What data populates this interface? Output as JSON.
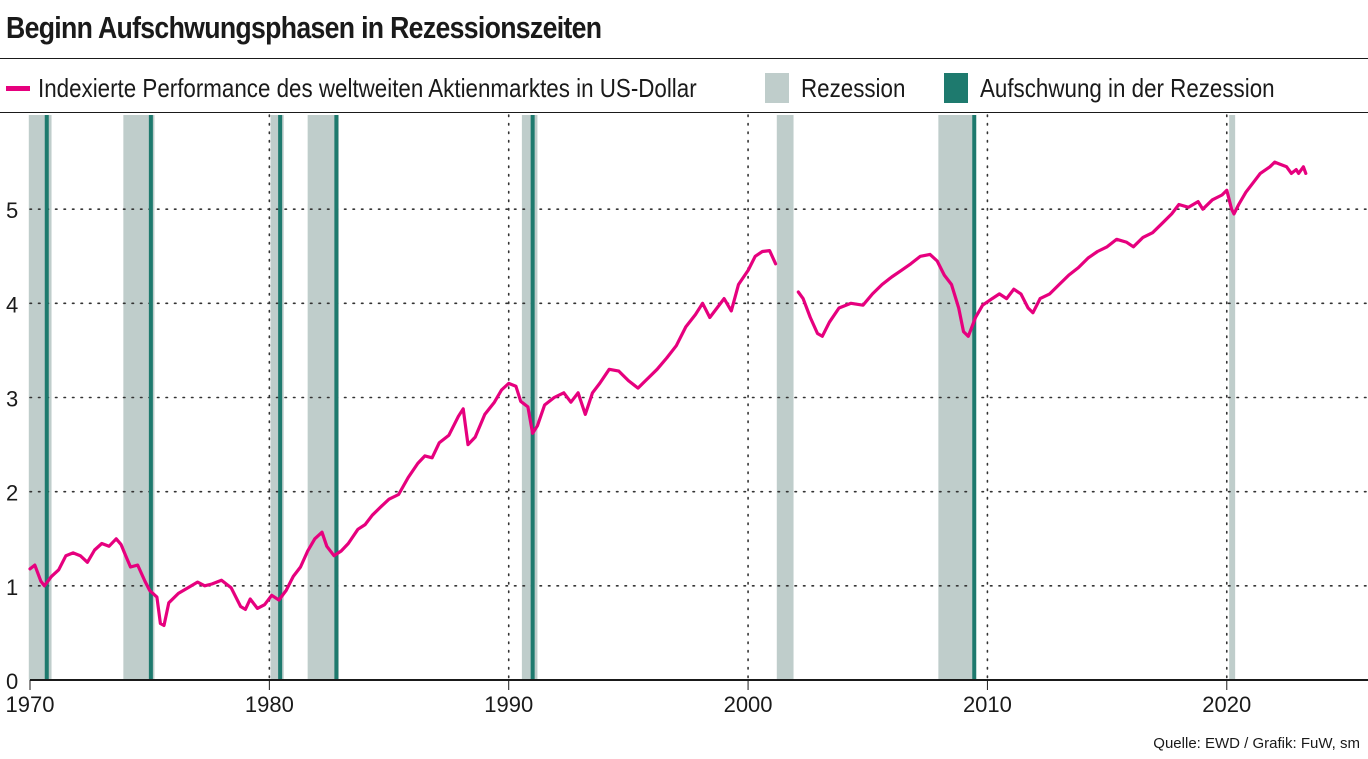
{
  "header": {
    "title": "Beginn Aufschwungsphasen in Rezessionszeiten"
  },
  "legend": [
    {
      "label": "Indexierte Performance des weltweiten Aktienmarktes in US-Dollar",
      "kind": "line",
      "color": "#e6007e"
    },
    {
      "label": "Rezession",
      "kind": "box",
      "color": "#bfcdcb"
    },
    {
      "label": "Aufschwung in der Rezession",
      "kind": "box",
      "color": "#1e7a6e"
    }
  ],
  "footer": {
    "source": "Quelle: EWD / Grafik: FuW, sm"
  },
  "chart_data": {
    "type": "line",
    "title": "Beginn Aufschwungsphasen in Rezessionszeiten",
    "xlim": [
      1970,
      2025.9
    ],
    "ylim": [
      0,
      6
    ],
    "x_ticks": [
      1970,
      1980,
      1990,
      2000,
      2010,
      2020
    ],
    "y_ticks": [
      0,
      1,
      2,
      3,
      4,
      5
    ],
    "grid": "dotted",
    "legend_position": "top",
    "recessions": [
      [
        1969.95,
        1970.9
      ],
      [
        1973.9,
        1975.2
      ],
      [
        1980.05,
        1980.6
      ],
      [
        1981.6,
        1982.9
      ],
      [
        1990.55,
        1991.2
      ],
      [
        2001.2,
        2001.9
      ],
      [
        2007.95,
        2009.5
      ],
      [
        2020.1,
        2020.35
      ]
    ],
    "recovery_starts": [
      1970.7,
      1975.05,
      1980.45,
      1982.8,
      1991.0,
      2009.45
    ],
    "series": [
      {
        "color": "#e6007e",
        "points": [
          [
            1970.0,
            1.18
          ],
          [
            1970.2,
            1.22
          ],
          [
            1970.45,
            1.05
          ],
          [
            1970.6,
            1.0
          ],
          [
            1970.9,
            1.1
          ],
          [
            1971.2,
            1.17
          ],
          [
            1971.5,
            1.32
          ],
          [
            1971.8,
            1.35
          ],
          [
            1972.1,
            1.32
          ],
          [
            1972.4,
            1.25
          ],
          [
            1972.7,
            1.38
          ],
          [
            1973.0,
            1.45
          ],
          [
            1973.3,
            1.42
          ],
          [
            1973.6,
            1.5
          ],
          [
            1973.8,
            1.44
          ],
          [
            1974.0,
            1.32
          ],
          [
            1974.2,
            1.2
          ],
          [
            1974.5,
            1.22
          ],
          [
            1974.8,
            1.05
          ],
          [
            1975.0,
            0.95
          ],
          [
            1975.3,
            0.88
          ],
          [
            1975.45,
            0.6
          ],
          [
            1975.6,
            0.58
          ],
          [
            1975.8,
            0.82
          ],
          [
            1976.2,
            0.92
          ],
          [
            1976.6,
            0.98
          ],
          [
            1977.0,
            1.04
          ],
          [
            1977.3,
            1.0
          ],
          [
            1977.6,
            1.02
          ],
          [
            1978.0,
            1.06
          ],
          [
            1978.4,
            0.98
          ],
          [
            1978.8,
            0.78
          ],
          [
            1979.0,
            0.75
          ],
          [
            1979.2,
            0.86
          ],
          [
            1979.5,
            0.76
          ],
          [
            1979.8,
            0.8
          ],
          [
            1980.1,
            0.9
          ],
          [
            1980.4,
            0.85
          ],
          [
            1980.7,
            0.95
          ],
          [
            1981.0,
            1.1
          ],
          [
            1981.3,
            1.2
          ],
          [
            1981.6,
            1.37
          ],
          [
            1981.9,
            1.5
          ],
          [
            1982.2,
            1.57
          ],
          [
            1982.4,
            1.42
          ],
          [
            1982.7,
            1.32
          ],
          [
            1983.0,
            1.37
          ],
          [
            1983.3,
            1.45
          ],
          [
            1983.7,
            1.6
          ],
          [
            1984.0,
            1.65
          ],
          [
            1984.3,
            1.75
          ],
          [
            1984.7,
            1.85
          ],
          [
            1985.0,
            1.92
          ],
          [
            1985.4,
            1.97
          ],
          [
            1985.8,
            2.15
          ],
          [
            1986.2,
            2.3
          ],
          [
            1986.5,
            2.38
          ],
          [
            1986.8,
            2.36
          ],
          [
            1987.1,
            2.52
          ],
          [
            1987.5,
            2.6
          ],
          [
            1987.9,
            2.8
          ],
          [
            1988.1,
            2.88
          ],
          [
            1988.3,
            2.5
          ],
          [
            1988.6,
            2.58
          ],
          [
            1989.0,
            2.82
          ],
          [
            1989.4,
            2.95
          ],
          [
            1989.7,
            3.08
          ],
          [
            1990.0,
            3.15
          ],
          [
            1990.3,
            3.12
          ],
          [
            1990.5,
            2.96
          ],
          [
            1990.8,
            2.9
          ],
          [
            1991.0,
            2.62
          ],
          [
            1991.2,
            2.7
          ],
          [
            1991.5,
            2.92
          ],
          [
            1991.9,
            3.0
          ],
          [
            1992.3,
            3.05
          ],
          [
            1992.6,
            2.95
          ],
          [
            1992.9,
            3.05
          ],
          [
            1993.2,
            2.82
          ],
          [
            1993.5,
            3.05
          ],
          [
            1993.8,
            3.15
          ],
          [
            1994.2,
            3.3
          ],
          [
            1994.6,
            3.28
          ],
          [
            1995.0,
            3.18
          ],
          [
            1995.4,
            3.1
          ],
          [
            1995.8,
            3.2
          ],
          [
            1996.2,
            3.3
          ],
          [
            1996.6,
            3.42
          ],
          [
            1997.0,
            3.55
          ],
          [
            1997.4,
            3.75
          ],
          [
            1997.8,
            3.88
          ],
          [
            1998.1,
            4.0
          ],
          [
            1998.4,
            3.85
          ],
          [
            1998.7,
            3.95
          ],
          [
            1999.0,
            4.05
          ],
          [
            1999.3,
            3.92
          ],
          [
            1999.6,
            4.2
          ],
          [
            2000.0,
            4.35
          ],
          [
            2000.3,
            4.5
          ],
          [
            2000.6,
            4.55
          ],
          [
            2000.9,
            4.56
          ],
          [
            2001.15,
            4.42
          ],
          [
            2002.1,
            4.12
          ],
          [
            2002.3,
            4.05
          ],
          [
            2002.6,
            3.85
          ],
          [
            2002.9,
            3.68
          ],
          [
            2003.1,
            3.65
          ],
          [
            2003.4,
            3.8
          ],
          [
            2003.8,
            3.95
          ],
          [
            2004.3,
            4.0
          ],
          [
            2004.8,
            3.98
          ],
          [
            2005.2,
            4.1
          ],
          [
            2005.6,
            4.2
          ],
          [
            2006.0,
            4.28
          ],
          [
            2006.4,
            4.35
          ],
          [
            2006.8,
            4.42
          ],
          [
            2007.2,
            4.5
          ],
          [
            2007.6,
            4.52
          ],
          [
            2007.9,
            4.45
          ],
          [
            2008.2,
            4.3
          ],
          [
            2008.5,
            4.2
          ],
          [
            2008.8,
            3.95
          ],
          [
            2009.0,
            3.7
          ],
          [
            2009.2,
            3.65
          ],
          [
            2009.5,
            3.85
          ],
          [
            2009.8,
            3.98
          ],
          [
            2010.2,
            4.05
          ],
          [
            2010.5,
            4.1
          ],
          [
            2010.8,
            4.05
          ],
          [
            2011.1,
            4.15
          ],
          [
            2011.4,
            4.1
          ],
          [
            2011.7,
            3.95
          ],
          [
            2011.9,
            3.9
          ],
          [
            2012.2,
            4.05
          ],
          [
            2012.6,
            4.1
          ],
          [
            2013.0,
            4.2
          ],
          [
            2013.4,
            4.3
          ],
          [
            2013.8,
            4.38
          ],
          [
            2014.2,
            4.48
          ],
          [
            2014.6,
            4.55
          ],
          [
            2015.0,
            4.6
          ],
          [
            2015.4,
            4.68
          ],
          [
            2015.8,
            4.65
          ],
          [
            2016.1,
            4.6
          ],
          [
            2016.5,
            4.7
          ],
          [
            2016.9,
            4.75
          ],
          [
            2017.3,
            4.85
          ],
          [
            2017.7,
            4.95
          ],
          [
            2018.0,
            5.05
          ],
          [
            2018.4,
            5.02
          ],
          [
            2018.8,
            5.08
          ],
          [
            2019.0,
            5.0
          ],
          [
            2019.4,
            5.1
          ],
          [
            2019.8,
            5.15
          ],
          [
            2020.0,
            5.2
          ],
          [
            2020.2,
            5.0
          ],
          [
            2020.3,
            4.95
          ],
          [
            2020.5,
            5.05
          ],
          [
            2020.8,
            5.18
          ],
          [
            2021.1,
            5.28
          ],
          [
            2021.4,
            5.38
          ],
          [
            2021.8,
            5.45
          ],
          [
            2022.0,
            5.5
          ],
          [
            2022.2,
            5.48
          ],
          [
            2022.5,
            5.45
          ],
          [
            2022.7,
            5.38
          ],
          [
            2022.9,
            5.42
          ],
          [
            2023.0,
            5.38
          ],
          [
            2023.2,
            5.45
          ],
          [
            2023.3,
            5.38
          ]
        ]
      }
    ]
  }
}
